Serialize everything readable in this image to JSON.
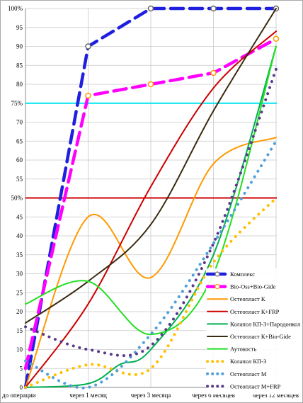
{
  "chart_data": {
    "type": "line",
    "categories": [
      "до операции",
      "через 1 месяц",
      "через 3 месяца",
      "через 6 месяцев",
      "через 12 месяцев"
    ],
    "y_ticks": [
      "0",
      "5",
      "10",
      "15",
      "20",
      "25",
      "30",
      "35",
      "40",
      "45",
      "50%",
      "55",
      "60",
      "65",
      "70",
      "75%",
      "80",
      "85",
      "90",
      "95",
      "100%"
    ],
    "ylim": [
      0,
      100
    ],
    "grid": true,
    "legend_position": "right",
    "reference_lines": [
      {
        "value": 75,
        "color": "#00e5ee"
      },
      {
        "value": 50,
        "color": "#cc0000"
      }
    ],
    "series": [
      {
        "name": "Комплекс",
        "color": "#1f1fe0",
        "style": "dashed-thick",
        "markers": true,
        "x": [
          0,
          1,
          2,
          3,
          4
        ],
        "values": [
          0,
          90,
          100,
          100,
          100
        ]
      },
      {
        "name": "Bio-Oss+Bio-Gide",
        "color": "#ff00ff",
        "style": "dashed-thick",
        "markers": true,
        "x": [
          0,
          1,
          2,
          3,
          4
        ],
        "values": [
          5,
          77,
          80,
          83,
          92
        ]
      },
      {
        "name": "Остеопласт К",
        "color": "#ff9900",
        "style": "solid",
        "x": [
          0,
          1,
          2,
          3,
          4
        ],
        "values": [
          0,
          45,
          29,
          59,
          66
        ]
      },
      {
        "name": "Остеопласт К+FRP",
        "color": "#cc0000",
        "style": "solid",
        "x": [
          0,
          1,
          2,
          3,
          4
        ],
        "values": [
          0,
          22,
          53,
          79,
          94
        ]
      },
      {
        "name": "Колапол КП-3+Пародонкол",
        "color": "#00b050",
        "style": "solid",
        "x": [
          0,
          1,
          1.5,
          2,
          3,
          4
        ],
        "values": [
          0,
          1,
          6,
          10,
          35,
          90
        ]
      },
      {
        "name": "Остеопласт К+Bio-Gide",
        "color": "#3a2a10",
        "style": "solid",
        "x": [
          0,
          1,
          2,
          3,
          4
        ],
        "values": [
          17,
          28,
          43,
          73,
          100
        ]
      },
      {
        "name": "Аутокость",
        "color": "#22e022",
        "style": "solid",
        "x": [
          0,
          1,
          2,
          3,
          4
        ],
        "values": [
          22,
          28,
          14,
          30,
          90
        ]
      },
      {
        "name": "Колапол КП-3",
        "color": "#ffc000",
        "style": "dotted",
        "x": [
          0,
          1,
          2,
          3,
          4
        ],
        "values": [
          0,
          6,
          5,
          33,
          50
        ]
      },
      {
        "name": "Остеопласт М",
        "color": "#4f9fdc",
        "style": "dotted",
        "x": [
          0,
          1,
          2,
          3,
          4
        ],
        "values": [
          7,
          0,
          14,
          38,
          65
        ]
      },
      {
        "name": "Остеопласт М+FRP",
        "color": "#5b3a8c",
        "style": "dotted",
        "x": [
          0,
          1,
          2,
          3,
          4
        ],
        "values": [
          16,
          10,
          11,
          38,
          84
        ]
      }
    ]
  }
}
